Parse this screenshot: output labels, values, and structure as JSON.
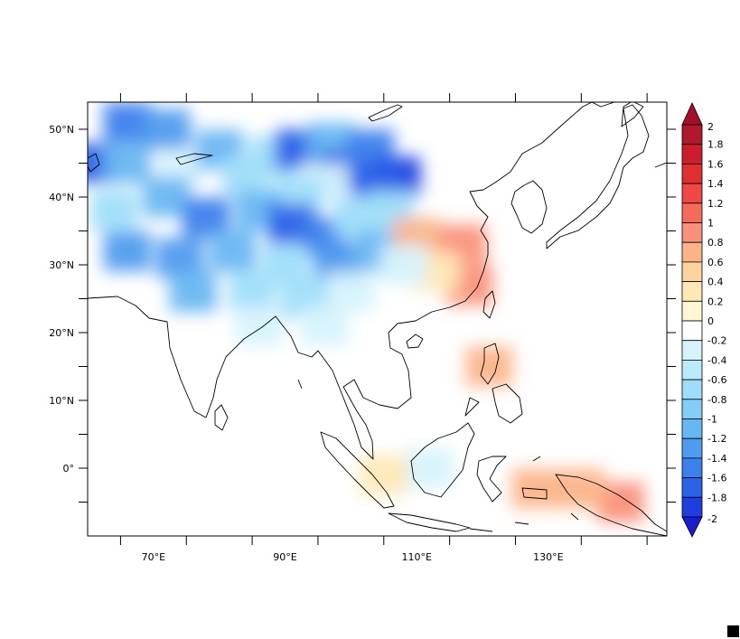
{
  "map": {
    "lon_range": [
      60,
      148
    ],
    "lat_range": [
      -10,
      54
    ],
    "lat_labels": [
      {
        "lat": 50,
        "text": "50°N"
      },
      {
        "lat": 40,
        "text": "40°N"
      },
      {
        "lat": 30,
        "text": "30°N"
      },
      {
        "lat": 20,
        "text": "20°N"
      },
      {
        "lat": 10,
        "text": "10°N"
      },
      {
        "lat": 0,
        "text": "0°"
      }
    ],
    "lon_labels": [
      {
        "lon": 70,
        "text": "70°E"
      },
      {
        "lon": 90,
        "text": "90°E"
      },
      {
        "lon": 110,
        "text": "110°E"
      },
      {
        "lon": 130,
        "text": "130°E"
      }
    ],
    "colorbar": {
      "labels": [
        "2",
        "1.8",
        "1.6",
        "1.4",
        "1.2",
        "1",
        "0.8",
        "0.6",
        "0.4",
        "0.2",
        "0",
        "-0.2",
        "-0.4",
        "-0.6",
        "-0.8",
        "-1",
        "-1.2",
        "-1.4",
        "-1.6",
        "-1.8",
        "-2"
      ],
      "colors": [
        "#b2182b",
        "#cb1d2d",
        "#e03030",
        "#ef4747",
        "#f66a5a",
        "#f9917a",
        "#fbb489",
        "#fdd49e",
        "#fee8b5",
        "#fff6d8",
        "#ffffff",
        "#d6f3fc",
        "#b9ebfb",
        "#9fdefa",
        "#84cdf7",
        "#68b6f2",
        "#4f9cee",
        "#3b80ec",
        "#2b62e8",
        "#1d3fe0"
      ],
      "top_arrow_color": "#a50f26",
      "bottom_arrow_color": "#1c1ccf"
    },
    "anomaly_patches": [
      {
        "lon": 66,
        "lat": 51,
        "v": -1.4
      },
      {
        "lon": 72,
        "lat": 50,
        "v": -1.2
      },
      {
        "lon": 61,
        "lat": 45,
        "v": -1.6
      },
      {
        "lon": 66,
        "lat": 45,
        "v": -1.0
      },
      {
        "lon": 74,
        "lat": 44,
        "v": -0.4
      },
      {
        "lon": 80,
        "lat": 47,
        "v": -1.0
      },
      {
        "lon": 84,
        "lat": 43,
        "v": -0.8
      },
      {
        "lon": 88,
        "lat": 46,
        "v": -0.6
      },
      {
        "lon": 92,
        "lat": 47,
        "v": -1.6
      },
      {
        "lon": 97,
        "lat": 48,
        "v": -1.0
      },
      {
        "lon": 99,
        "lat": 44,
        "v": -1.8
      },
      {
        "lon": 103,
        "lat": 47,
        "v": -1.4
      },
      {
        "lon": 107,
        "lat": 43,
        "v": -2.0
      },
      {
        "lon": 104,
        "lat": 42,
        "v": -1.6
      },
      {
        "lon": 96,
        "lat": 42,
        "v": -0.2
      },
      {
        "lon": 92,
        "lat": 40,
        "v": -0.6
      },
      {
        "lon": 72,
        "lat": 40,
        "v": -1.0
      },
      {
        "lon": 64,
        "lat": 38,
        "v": -0.6
      },
      {
        "lon": 78,
        "lat": 37,
        "v": -1.4
      },
      {
        "lon": 86,
        "lat": 38,
        "v": -1.0
      },
      {
        "lon": 91,
        "lat": 36,
        "v": -1.8
      },
      {
        "lon": 96,
        "lat": 34,
        "v": -1.4
      },
      {
        "lon": 101,
        "lat": 37,
        "v": -0.8
      },
      {
        "lon": 106,
        "lat": 38,
        "v": -0.6
      },
      {
        "lon": 66,
        "lat": 32,
        "v": -1.2
      },
      {
        "lon": 74,
        "lat": 31,
        "v": -1.2
      },
      {
        "lon": 82,
        "lat": 32,
        "v": -1.0
      },
      {
        "lon": 90,
        "lat": 30,
        "v": -0.8
      },
      {
        "lon": 98,
        "lat": 30,
        "v": -1.2
      },
      {
        "lon": 104,
        "lat": 32,
        "v": -1.0
      },
      {
        "lon": 76,
        "lat": 26,
        "v": -1.0
      },
      {
        "lon": 85,
        "lat": 26,
        "v": -0.8
      },
      {
        "lon": 93,
        "lat": 25,
        "v": -0.6
      },
      {
        "lon": 100,
        "lat": 26,
        "v": -0.4
      },
      {
        "lon": 86,
        "lat": 21,
        "v": -0.4
      },
      {
        "lon": 96,
        "lat": 21,
        "v": -0.2
      },
      {
        "lon": 110,
        "lat": 34,
        "v": 0.6
      },
      {
        "lon": 118,
        "lat": 27,
        "v": 1.0
      },
      {
        "lon": 117,
        "lat": 33,
        "v": 0.8
      },
      {
        "lon": 113,
        "lat": 29,
        "v": 0.4
      },
      {
        "lon": 108,
        "lat": 30,
        "v": -0.4
      },
      {
        "lon": 121,
        "lat": 15,
        "v": 0.6
      },
      {
        "lon": 141,
        "lat": -5,
        "v": 0.8
      },
      {
        "lon": 135,
        "lat": -3,
        "v": 0.6
      },
      {
        "lon": 128,
        "lat": -3,
        "v": 0.6
      },
      {
        "lon": 112,
        "lat": 0,
        "v": -0.2
      },
      {
        "lon": 105,
        "lat": -1,
        "v": 0.4
      }
    ]
  }
}
